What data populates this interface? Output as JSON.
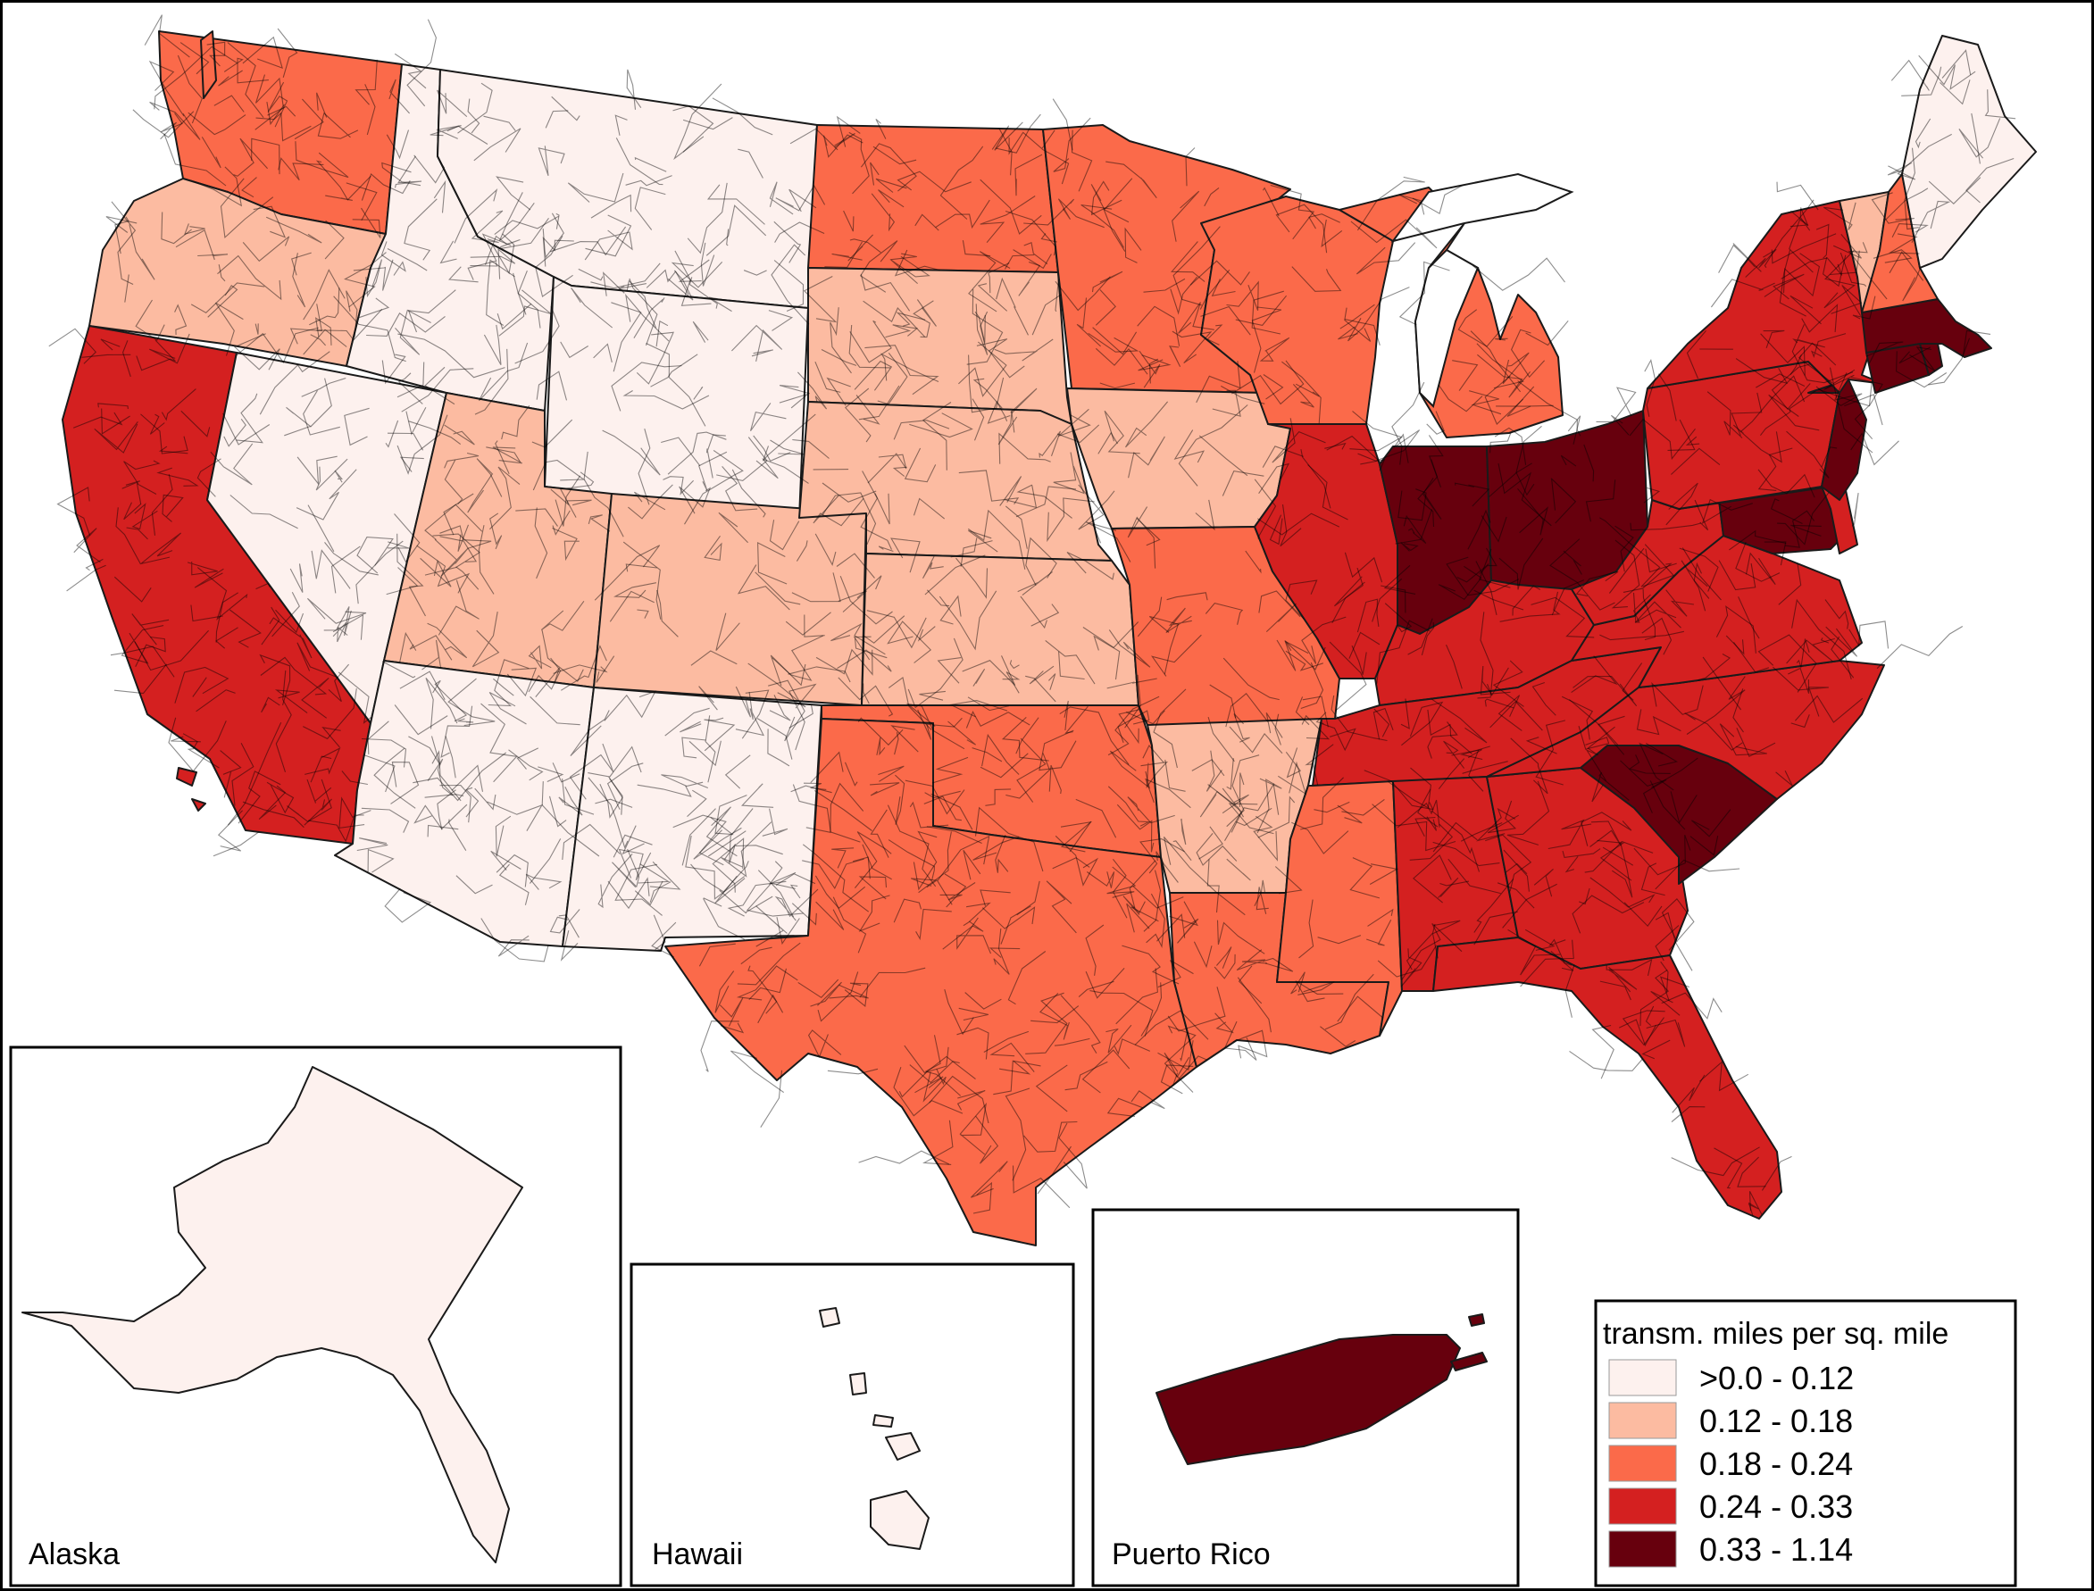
{
  "colors": {
    "class1": "#fdf1ee",
    "class2": "#fcbba1",
    "class3": "#fb6a4a",
    "class4": "#d42020",
    "class5": "#67000d",
    "outline": "#1a1a1a"
  },
  "insets": {
    "alaska_label": "Alaska",
    "hawaii_label": "Hawaii",
    "puerto_rico_label": "Puerto Rico"
  },
  "legend": {
    "title": "transm. miles per sq. mile",
    "classes": [
      {
        "label": ">0.0 - 0.12",
        "color": "#fdf1ee"
      },
      {
        "label": "0.12 - 0.18",
        "color": "#fcbba1"
      },
      {
        "label": "0.18 - 0.24",
        "color": "#fb6a4a"
      },
      {
        "label": "0.24 - 0.33",
        "color": "#d42020"
      },
      {
        "label": "0.33 - 1.14",
        "color": "#67000d"
      }
    ]
  },
  "map_data": {
    "states": [
      {
        "name": "Washington",
        "class": 3
      },
      {
        "name": "Oregon",
        "class": 2
      },
      {
        "name": "California",
        "class": 4
      },
      {
        "name": "Nevada",
        "class": 1
      },
      {
        "name": "Idaho",
        "class": 1
      },
      {
        "name": "Montana",
        "class": 1
      },
      {
        "name": "Wyoming",
        "class": 1
      },
      {
        "name": "Utah",
        "class": 2
      },
      {
        "name": "Arizona",
        "class": 1
      },
      {
        "name": "Colorado",
        "class": 2
      },
      {
        "name": "New Mexico",
        "class": 1
      },
      {
        "name": "North Dakota",
        "class": 3
      },
      {
        "name": "South Dakota",
        "class": 2
      },
      {
        "name": "Nebraska",
        "class": 2
      },
      {
        "name": "Kansas",
        "class": 2
      },
      {
        "name": "Oklahoma",
        "class": 3
      },
      {
        "name": "Texas",
        "class": 3
      },
      {
        "name": "Minnesota",
        "class": 3
      },
      {
        "name": "Iowa",
        "class": 2
      },
      {
        "name": "Missouri",
        "class": 3
      },
      {
        "name": "Arkansas",
        "class": 2
      },
      {
        "name": "Louisiana",
        "class": 3
      },
      {
        "name": "Wisconsin",
        "class": 3
      },
      {
        "name": "Michigan",
        "class": 3
      },
      {
        "name": "Illinois",
        "class": 4
      },
      {
        "name": "Indiana",
        "class": 5
      },
      {
        "name": "Ohio",
        "class": 5
      },
      {
        "name": "Kentucky",
        "class": 4
      },
      {
        "name": "Tennessee",
        "class": 4
      },
      {
        "name": "Mississippi",
        "class": 3
      },
      {
        "name": "Alabama",
        "class": 4
      },
      {
        "name": "Georgia",
        "class": 4
      },
      {
        "name": "Florida",
        "class": 4
      },
      {
        "name": "South Carolina",
        "class": 5
      },
      {
        "name": "North Carolina",
        "class": 4
      },
      {
        "name": "Virginia",
        "class": 4
      },
      {
        "name": "West Virginia",
        "class": 4
      },
      {
        "name": "Maryland",
        "class": 5
      },
      {
        "name": "Delaware",
        "class": 4
      },
      {
        "name": "Pennsylvania",
        "class": 4
      },
      {
        "name": "New Jersey",
        "class": 5
      },
      {
        "name": "New York",
        "class": 4
      },
      {
        "name": "Connecticut",
        "class": 5
      },
      {
        "name": "Rhode Island",
        "class": 5
      },
      {
        "name": "Massachusetts",
        "class": 5
      },
      {
        "name": "Vermont",
        "class": 2
      },
      {
        "name": "New Hampshire",
        "class": 3
      },
      {
        "name": "Maine",
        "class": 1
      },
      {
        "name": "Alaska",
        "class": 1
      },
      {
        "name": "Hawaii",
        "class": 1
      },
      {
        "name": "Puerto Rico",
        "class": 5
      }
    ]
  }
}
